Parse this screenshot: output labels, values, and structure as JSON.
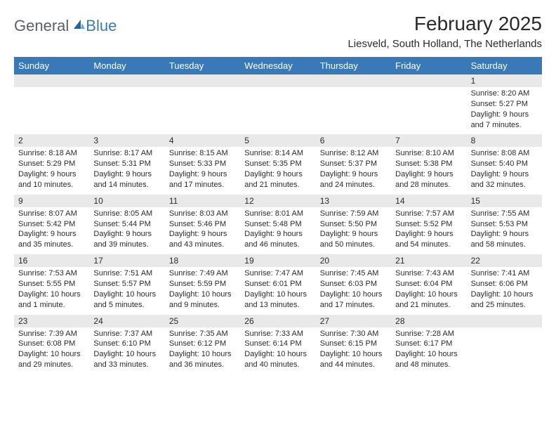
{
  "brand": {
    "general": "General",
    "blue": "Blue"
  },
  "title": "February 2025",
  "location": "Liesveld, South Holland, The Netherlands",
  "header_bg": "#3a79b7",
  "header_fg": "#ffffff",
  "strip_bg": "#e9e9e9",
  "text_color": "#2a2a2a",
  "background": "#ffffff",
  "title_fontsize": 28,
  "location_fontsize": 15,
  "dow_fontsize": 13,
  "daynum_fontsize": 12,
  "details_fontsize": 11,
  "days_of_week": [
    "Sunday",
    "Monday",
    "Tuesday",
    "Wednesday",
    "Thursday",
    "Friday",
    "Saturday"
  ],
  "weeks": [
    [
      null,
      null,
      null,
      null,
      null,
      null,
      {
        "n": "1",
        "sunrise": "8:20 AM",
        "sunset": "5:27 PM",
        "daylight": "9 hours and 7 minutes."
      }
    ],
    [
      {
        "n": "2",
        "sunrise": "8:18 AM",
        "sunset": "5:29 PM",
        "daylight": "9 hours and 10 minutes."
      },
      {
        "n": "3",
        "sunrise": "8:17 AM",
        "sunset": "5:31 PM",
        "daylight": "9 hours and 14 minutes."
      },
      {
        "n": "4",
        "sunrise": "8:15 AM",
        "sunset": "5:33 PM",
        "daylight": "9 hours and 17 minutes."
      },
      {
        "n": "5",
        "sunrise": "8:14 AM",
        "sunset": "5:35 PM",
        "daylight": "9 hours and 21 minutes."
      },
      {
        "n": "6",
        "sunrise": "8:12 AM",
        "sunset": "5:37 PM",
        "daylight": "9 hours and 24 minutes."
      },
      {
        "n": "7",
        "sunrise": "8:10 AM",
        "sunset": "5:38 PM",
        "daylight": "9 hours and 28 minutes."
      },
      {
        "n": "8",
        "sunrise": "8:08 AM",
        "sunset": "5:40 PM",
        "daylight": "9 hours and 32 minutes."
      }
    ],
    [
      {
        "n": "9",
        "sunrise": "8:07 AM",
        "sunset": "5:42 PM",
        "daylight": "9 hours and 35 minutes."
      },
      {
        "n": "10",
        "sunrise": "8:05 AM",
        "sunset": "5:44 PM",
        "daylight": "9 hours and 39 minutes."
      },
      {
        "n": "11",
        "sunrise": "8:03 AM",
        "sunset": "5:46 PM",
        "daylight": "9 hours and 43 minutes."
      },
      {
        "n": "12",
        "sunrise": "8:01 AM",
        "sunset": "5:48 PM",
        "daylight": "9 hours and 46 minutes."
      },
      {
        "n": "13",
        "sunrise": "7:59 AM",
        "sunset": "5:50 PM",
        "daylight": "9 hours and 50 minutes."
      },
      {
        "n": "14",
        "sunrise": "7:57 AM",
        "sunset": "5:52 PM",
        "daylight": "9 hours and 54 minutes."
      },
      {
        "n": "15",
        "sunrise": "7:55 AM",
        "sunset": "5:53 PM",
        "daylight": "9 hours and 58 minutes."
      }
    ],
    [
      {
        "n": "16",
        "sunrise": "7:53 AM",
        "sunset": "5:55 PM",
        "daylight": "10 hours and 1 minute."
      },
      {
        "n": "17",
        "sunrise": "7:51 AM",
        "sunset": "5:57 PM",
        "daylight": "10 hours and 5 minutes."
      },
      {
        "n": "18",
        "sunrise": "7:49 AM",
        "sunset": "5:59 PM",
        "daylight": "10 hours and 9 minutes."
      },
      {
        "n": "19",
        "sunrise": "7:47 AM",
        "sunset": "6:01 PM",
        "daylight": "10 hours and 13 minutes."
      },
      {
        "n": "20",
        "sunrise": "7:45 AM",
        "sunset": "6:03 PM",
        "daylight": "10 hours and 17 minutes."
      },
      {
        "n": "21",
        "sunrise": "7:43 AM",
        "sunset": "6:04 PM",
        "daylight": "10 hours and 21 minutes."
      },
      {
        "n": "22",
        "sunrise": "7:41 AM",
        "sunset": "6:06 PM",
        "daylight": "10 hours and 25 minutes."
      }
    ],
    [
      {
        "n": "23",
        "sunrise": "7:39 AM",
        "sunset": "6:08 PM",
        "daylight": "10 hours and 29 minutes."
      },
      {
        "n": "24",
        "sunrise": "7:37 AM",
        "sunset": "6:10 PM",
        "daylight": "10 hours and 33 minutes."
      },
      {
        "n": "25",
        "sunrise": "7:35 AM",
        "sunset": "6:12 PM",
        "daylight": "10 hours and 36 minutes."
      },
      {
        "n": "26",
        "sunrise": "7:33 AM",
        "sunset": "6:14 PM",
        "daylight": "10 hours and 40 minutes."
      },
      {
        "n": "27",
        "sunrise": "7:30 AM",
        "sunset": "6:15 PM",
        "daylight": "10 hours and 44 minutes."
      },
      {
        "n": "28",
        "sunrise": "7:28 AM",
        "sunset": "6:17 PM",
        "daylight": "10 hours and 48 minutes."
      },
      null
    ]
  ]
}
